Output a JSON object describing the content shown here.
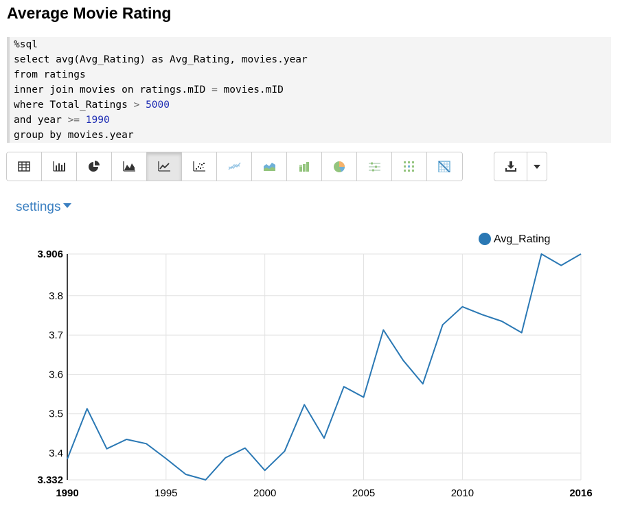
{
  "page": {
    "title": "Average Movie Rating"
  },
  "code": {
    "lines": [
      [
        {
          "t": "%sql"
        }
      ],
      [
        {
          "t": "select avg(Avg_Rating) as Avg_Rating, movies.year"
        }
      ],
      [
        {
          "t": "from ratings"
        }
      ],
      [
        {
          "t": "inner join movies on ratings.mID "
        },
        {
          "t": "=",
          "c": "op"
        },
        {
          "t": " movies.mID"
        }
      ],
      [
        {
          "t": "where Total_Ratings "
        },
        {
          "t": ">",
          "c": "op"
        },
        {
          "t": " "
        },
        {
          "t": "5000",
          "c": "num"
        }
      ],
      [
        {
          "t": "and year "
        },
        {
          "t": ">=",
          "c": "op"
        },
        {
          "t": " "
        },
        {
          "t": "1990",
          "c": "num"
        }
      ],
      [
        {
          "t": "group by movies.year"
        }
      ]
    ]
  },
  "toolbar": {
    "buttons": [
      {
        "name": "table-view-button",
        "icon": "table-icon",
        "active": false
      },
      {
        "name": "bar-chart-button",
        "icon": "bar-chart-icon",
        "active": false
      },
      {
        "name": "pie-chart-button",
        "icon": "pie-chart-icon",
        "active": false
      },
      {
        "name": "area-chart-button",
        "icon": "area-chart-icon",
        "active": false
      },
      {
        "name": "line-chart-button",
        "icon": "line-chart-icon",
        "active": true
      },
      {
        "name": "scatter-chart-button",
        "icon": "scatter-chart-icon",
        "active": false
      },
      {
        "name": "line-plus-button",
        "icon": "multi-line-icon",
        "active": false
      },
      {
        "name": "stacked-area-button",
        "icon": "stacked-area-icon",
        "active": false
      },
      {
        "name": "column-button",
        "icon": "column-chart-icon",
        "active": false
      },
      {
        "name": "donut-button",
        "icon": "donut-chart-icon",
        "active": false
      },
      {
        "name": "range-button",
        "icon": "range-chart-icon",
        "active": false
      },
      {
        "name": "heatmap-button",
        "icon": "dot-grid-icon",
        "active": false
      },
      {
        "name": "matrix-button",
        "icon": "matrix-icon",
        "active": false
      }
    ],
    "download_icon": "download-icon",
    "dropdown_icon": "caret-down-icon"
  },
  "settings": {
    "label": "settings"
  },
  "colors": {
    "line": "#2a78b4",
    "link": "#3a7fc1",
    "grid": "#e2e2e2",
    "number": "#1c2bb3"
  },
  "chart_data": {
    "type": "line",
    "legend": "top-right",
    "xlim": [
      1990,
      2016
    ],
    "ylim": [
      3.332,
      3.906
    ],
    "x_ticks": [
      "1990",
      "1995",
      "2000",
      "2005",
      "2010",
      "2016"
    ],
    "x_tick_values": [
      1990,
      1995,
      2000,
      2005,
      2010,
      2016
    ],
    "y_ticks": [
      "3.332",
      "3.4",
      "3.5",
      "3.6",
      "3.7",
      "3.8",
      "3.906"
    ],
    "y_tick_values": [
      3.332,
      3.4,
      3.5,
      3.6,
      3.7,
      3.8,
      3.906
    ],
    "series": [
      {
        "name": "Avg_Rating",
        "x": [
          1990,
          1991,
          1992,
          1993,
          1994,
          1995,
          1996,
          1997,
          1998,
          1999,
          2000,
          2001,
          2002,
          2003,
          2004,
          2005,
          2006,
          2007,
          2008,
          2009,
          2010,
          2011,
          2012,
          2013,
          2014,
          2015,
          2016
        ],
        "y": [
          3.385,
          3.513,
          3.411,
          3.435,
          3.424,
          3.386,
          3.346,
          3.332,
          3.388,
          3.413,
          3.356,
          3.405,
          3.523,
          3.438,
          3.569,
          3.542,
          3.713,
          3.636,
          3.576,
          3.726,
          3.772,
          3.752,
          3.735,
          3.706,
          3.906,
          3.877,
          3.906
        ]
      }
    ]
  }
}
